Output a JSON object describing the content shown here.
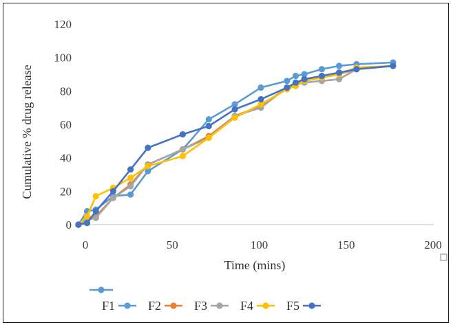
{
  "chart_data": {
    "type": "line",
    "title": "",
    "xlabel": "Time (mins)",
    "ylabel": "Cumulative % drug release",
    "xlim": [
      0,
      200
    ],
    "ylim": [
      0,
      120
    ],
    "xticks": [
      "0",
      "50",
      "100",
      "150",
      "200"
    ],
    "yticks": [
      "0",
      "20",
      "40",
      "60",
      "80",
      "100",
      "120"
    ],
    "grid": false,
    "legend_position": "bottom",
    "series": [
      {
        "name": "F1",
        "color": "#5B9BD5",
        "x": [
          -4,
          1,
          6,
          16,
          26,
          36,
          56,
          71,
          86,
          101,
          116,
          121,
          126,
          136,
          146,
          156,
          177
        ],
        "y": [
          0,
          8,
          9,
          17,
          18,
          32,
          45,
          63,
          72,
          82,
          86,
          89,
          90,
          93,
          95,
          96,
          97
        ]
      },
      {
        "name": "F2",
        "color": "#ED7D31",
        "x": [
          -4,
          1,
          6,
          16,
          26,
          36,
          56,
          71,
          86,
          101,
          116,
          121,
          126,
          136,
          146,
          156,
          177
        ],
        "y": [
          0,
          4,
          5,
          16,
          24,
          36,
          45,
          53,
          65,
          71,
          82,
          84,
          86,
          88,
          90,
          93,
          95
        ]
      },
      {
        "name": "F3",
        "color": "#A5A5A5",
        "x": [
          -4,
          1,
          6,
          16,
          26,
          36,
          56,
          71,
          86,
          101,
          116,
          121,
          126,
          136,
          146,
          156,
          177
        ],
        "y": [
          0,
          3,
          4,
          16,
          23,
          36,
          45,
          52,
          65,
          70,
          82,
          84,
          85,
          86,
          87,
          93,
          95
        ]
      },
      {
        "name": "F4",
        "color": "#FFC000",
        "x": [
          -4,
          1,
          6,
          16,
          26,
          36,
          56,
          71,
          86,
          101,
          116,
          121,
          126,
          136,
          146,
          156,
          177
        ],
        "y": [
          0,
          5,
          17,
          22,
          28,
          35,
          41,
          52,
          64,
          72,
          81,
          83,
          86,
          88,
          90,
          94,
          95
        ]
      },
      {
        "name": "F5",
        "color": "#4472C4",
        "x": [
          -4,
          1,
          6,
          16,
          26,
          36,
          56,
          71,
          86,
          101,
          116,
          121,
          126,
          136,
          146,
          156,
          177
        ],
        "y": [
          0,
          1,
          8,
          20,
          33,
          46,
          54,
          59,
          69,
          75,
          82,
          85,
          87,
          89,
          91,
          93,
          95
        ]
      }
    ]
  }
}
